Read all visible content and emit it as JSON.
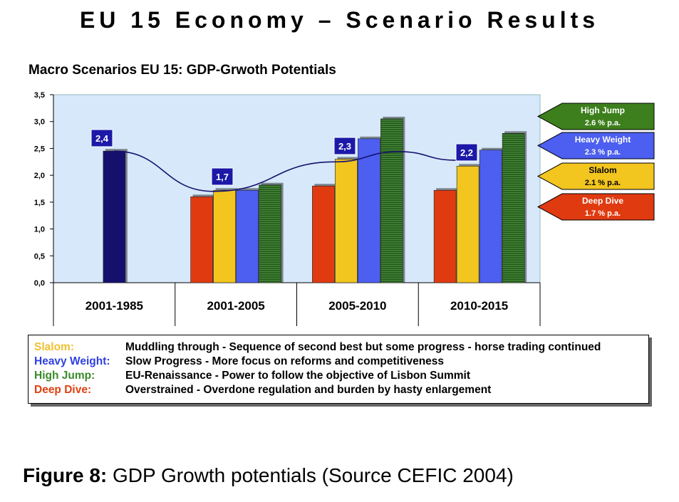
{
  "header": {
    "title": "EU 15 Economy – Scenario Results"
  },
  "chart_data": {
    "type": "bar",
    "title": "Macro Scenarios EU 15: GDP-Grwoth Potentials",
    "ylim": [
      0,
      3.5
    ],
    "yticks": [
      "0,0",
      "0,5",
      "1,0",
      "1,5",
      "2,0",
      "2,5",
      "3,0",
      "3,5"
    ],
    "categories": [
      "2001-1985",
      "2001-2005",
      "2005-2010",
      "2010-2015"
    ],
    "series": [
      {
        "name": "Deep Dive",
        "color": "#e03a10",
        "values": [
          null,
          1.6,
          1.8,
          1.72
        ]
      },
      {
        "name": "Slalom",
        "color": "#f2c51f",
        "values": [
          null,
          1.72,
          2.3,
          2.17
        ]
      },
      {
        "name": "Heavy Weight",
        "color": "#4c5ff0",
        "values": [
          null,
          1.72,
          2.68,
          2.47
        ]
      },
      {
        "name": "High Jump",
        "color": "#1f6b1f",
        "values": [
          null,
          1.82,
          3.05,
          2.78
        ]
      },
      {
        "name": "",
        "color": "#15106e",
        "values": [
          2.45,
          null,
          null,
          null
        ]
      }
    ],
    "trend_labels": [
      "2,4",
      "1,7",
      "2,3",
      "2,2"
    ],
    "grid": false,
    "scenarios": [
      {
        "name": "High Jump",
        "rate": "2.6 % p.a.",
        "color": "#3d7f1c"
      },
      {
        "name": "Heavy Weight",
        "rate": "2.3 % p.a.",
        "color": "#4c5ff0"
      },
      {
        "name": "Slalom",
        "rate": "2.1 % p.a.",
        "color": "#f2c51f"
      },
      {
        "name": "Deep Dive",
        "rate": "1.7 % p.a.",
        "color": "#e03a10"
      }
    ]
  },
  "legend": {
    "rows": [
      {
        "name": "Slalom:",
        "color": "#f0c030",
        "desc": "Muddling through - Sequence of second best but some progress - horse trading continued"
      },
      {
        "name": "Heavy Weight:",
        "color": "#3040e0",
        "desc": "Slow Progress - More focus on reforms and competitiveness"
      },
      {
        "name": "High Jump:",
        "color": "#3a8a2a",
        "desc": "EU-Renaissance - Power to follow the objective  of Lisbon Summit"
      },
      {
        "name": "Deep Dive:",
        "color": "#e04010",
        "desc": "Overstrained  - Overdone regulation and  burden by hasty enlargement"
      }
    ]
  },
  "caption": {
    "label": "Figure 8:",
    "text": " GDP Growth potentials (Source CEFIC 2004)"
  }
}
